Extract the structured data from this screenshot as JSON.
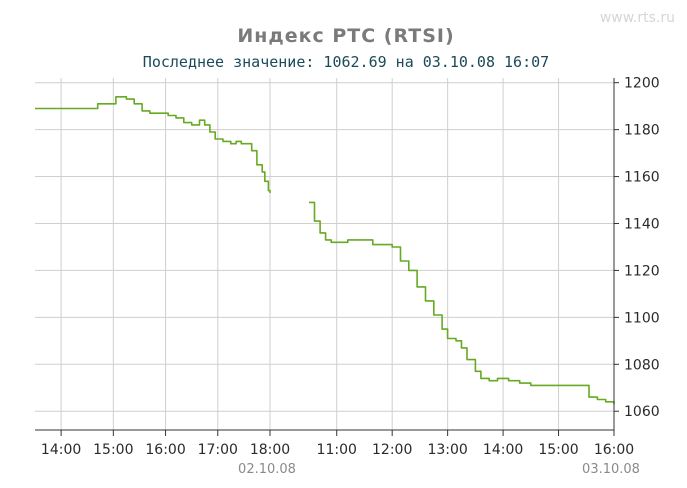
{
  "watermark": "www.rts.ru",
  "chart_data": {
    "type": "line",
    "title": "Индекс РТС (RTSI)",
    "subtitle": "Последнее значение: 1062.69 на 03.10.08 16:07",
    "x_tick_labels": [
      "14:00",
      "15:00",
      "16:00",
      "17:00",
      "18:00",
      "11:00",
      "12:00",
      "13:00",
      "14:00",
      "15:00",
      "16:00"
    ],
    "date_labels": [
      "02.10.08",
      "03.10.08"
    ],
    "y_ticks": [
      1060,
      1080,
      1100,
      1120,
      1140,
      1160,
      1180,
      1200
    ],
    "ylim": [
      1052,
      1202
    ],
    "grid": true,
    "line_color": "#66aa22",
    "x_note": "x in hours of the session; day 02.10.08 spans 13.5–18.0, day 03.10.08 spans 10.5–16.0",
    "series": [
      {
        "points": [
          [
            13.5,
            1189
          ],
          [
            14.0,
            1189
          ],
          [
            14.5,
            1189
          ],
          [
            14.7,
            1191
          ],
          [
            15.0,
            1191
          ],
          [
            15.05,
            1194
          ],
          [
            15.15,
            1194
          ],
          [
            15.25,
            1193
          ],
          [
            15.4,
            1191
          ],
          [
            15.55,
            1188
          ],
          [
            15.7,
            1187
          ],
          [
            15.9,
            1187
          ],
          [
            16.05,
            1186
          ],
          [
            16.2,
            1185
          ],
          [
            16.35,
            1183
          ],
          [
            16.5,
            1182
          ],
          [
            16.65,
            1184
          ],
          [
            16.75,
            1182
          ],
          [
            16.85,
            1179
          ],
          [
            16.95,
            1176
          ],
          [
            17.1,
            1175
          ],
          [
            17.25,
            1174
          ],
          [
            17.35,
            1175
          ],
          [
            17.45,
            1174
          ],
          [
            17.55,
            1174
          ],
          [
            17.65,
            1171
          ],
          [
            17.75,
            1165
          ],
          [
            17.85,
            1162
          ],
          [
            17.9,
            1158
          ],
          [
            17.97,
            1154
          ],
          [
            18.0,
            1153
          ]
        ]
      },
      {
        "points": [
          [
            10.5,
            1149
          ],
          [
            10.6,
            1141
          ],
          [
            10.7,
            1136
          ],
          [
            10.8,
            1133
          ],
          [
            10.9,
            1132
          ],
          [
            11.0,
            1132
          ],
          [
            11.2,
            1133
          ],
          [
            11.4,
            1133
          ],
          [
            11.55,
            1133
          ],
          [
            11.65,
            1131
          ],
          [
            11.8,
            1131
          ],
          [
            12.0,
            1130
          ],
          [
            12.15,
            1124
          ],
          [
            12.3,
            1120
          ],
          [
            12.45,
            1113
          ],
          [
            12.6,
            1107
          ],
          [
            12.75,
            1101
          ],
          [
            12.9,
            1095
          ],
          [
            13.0,
            1091
          ],
          [
            13.15,
            1090
          ],
          [
            13.25,
            1087
          ],
          [
            13.35,
            1082
          ],
          [
            13.5,
            1077
          ],
          [
            13.6,
            1074
          ],
          [
            13.75,
            1073
          ],
          [
            13.9,
            1074
          ],
          [
            14.1,
            1073
          ],
          [
            14.3,
            1072
          ],
          [
            14.5,
            1071
          ],
          [
            14.75,
            1071
          ],
          [
            15.0,
            1071
          ],
          [
            15.2,
            1071
          ],
          [
            15.5,
            1071
          ],
          [
            15.55,
            1066
          ],
          [
            15.7,
            1065
          ],
          [
            15.85,
            1064
          ],
          [
            16.0,
            1063
          ]
        ]
      }
    ]
  }
}
